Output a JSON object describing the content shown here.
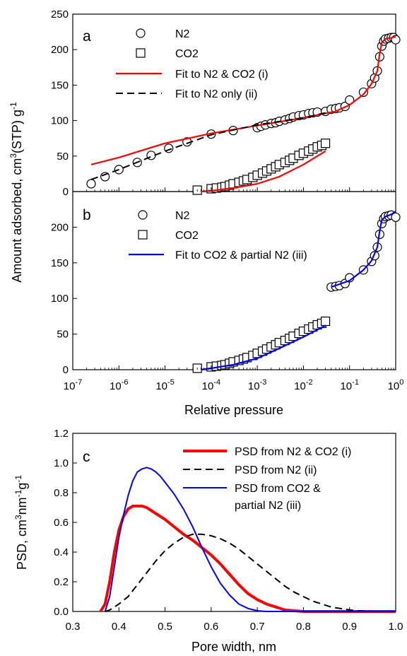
{
  "chart_data": [
    {
      "type": "scatter",
      "panel": "a",
      "xscale": "log",
      "xlim": [
        1e-07,
        1
      ],
      "ylim": [
        0,
        250
      ],
      "yticks": [
        0,
        50,
        100,
        150,
        200,
        250
      ],
      "legend": [
        "N2",
        "CO2",
        "Fit to N2 & CO2 (i)",
        "Fit to N2 only (ii)"
      ],
      "legend_position": "top-left",
      "series": [
        {
          "name": "N2",
          "marker": "circle",
          "color": "#000000",
          "x": [
            2.5e-07,
            5e-07,
            1e-06,
            2.5e-06,
            5e-06,
            1.2e-05,
            3e-05,
            0.0001,
            0.0003,
            0.001,
            0.0012,
            0.0015,
            0.002,
            0.0025,
            0.003,
            0.004,
            0.005,
            0.006,
            0.008,
            0.01,
            0.013,
            0.016,
            0.02,
            0.03,
            0.04,
            0.05,
            0.06,
            0.08,
            0.1,
            0.2,
            0.3,
            0.35,
            0.4,
            0.45,
            0.5,
            0.55,
            0.6,
            0.7,
            0.8,
            0.9,
            1.0
          ],
          "y": [
            11,
            21,
            31,
            41,
            51,
            61,
            70,
            81,
            86,
            90,
            92,
            94,
            96,
            97,
            99,
            101,
            103,
            105,
            107,
            108,
            110,
            111,
            112,
            113,
            116,
            117,
            118,
            120,
            129,
            140,
            152,
            160,
            170,
            190,
            205,
            212,
            215,
            216,
            217,
            217,
            214
          ]
        },
        {
          "name": "CO2",
          "marker": "square",
          "color": "#000000",
          "x": [
            5e-05,
            0.0001,
            0.00013,
            0.00017,
            0.0002,
            0.00025,
            0.0003,
            0.0004,
            0.0005,
            0.0006,
            0.0008,
            0.001,
            0.0013,
            0.0016,
            0.002,
            0.0025,
            0.003,
            0.004,
            0.005,
            0.006,
            0.008,
            0.01,
            0.013,
            0.016,
            0.02,
            0.025,
            0.03
          ],
          "y": [
            2,
            4,
            5,
            6,
            7,
            9,
            11,
            13,
            15,
            17,
            20,
            23,
            26,
            29,
            32,
            35,
            38,
            41,
            44,
            47,
            51,
            54,
            57,
            60,
            63,
            65,
            68
          ]
        },
        {
          "name": "Fit to N2 & CO2 (i)",
          "line": "solid",
          "color": "#ff0000",
          "segments": [
            {
              "x": [
                2.5e-07,
                1e-06,
                1e-05,
                0.0001,
                0.001,
                0.01,
                0.05,
                0.1,
                0.2,
                0.3,
                0.4,
                0.45,
                0.5,
                0.6,
                1.0
              ],
              "y": [
                38,
                48,
                68,
                82,
                93,
                104,
                113,
                122,
                137,
                152,
                170,
                195,
                210,
                215,
                218
              ]
            },
            {
              "x": [
                6e-05,
                0.0001,
                0.0003,
                0.001,
                0.003,
                0.01,
                0.03
              ],
              "y": [
                0,
                1,
                5,
                11,
                21,
                38,
                57
              ]
            }
          ]
        },
        {
          "name": "Fit to N2 only (ii)",
          "line": "dashed",
          "color": "#000000",
          "x": [
            2.5e-07,
            1e-06,
            1e-05,
            0.0001,
            0.001,
            0.01,
            0.03
          ],
          "y": [
            17,
            31,
            57,
            80,
            94,
            104,
            111
          ]
        }
      ]
    },
    {
      "type": "scatter",
      "panel": "b",
      "xscale": "log",
      "xlim": [
        1e-07,
        1
      ],
      "ylim": [
        0,
        250
      ],
      "yticks": [
        0,
        50,
        100,
        150,
        200
      ],
      "xlabel": "Relative pressure",
      "ylabel": "Amount adsorbed, cm³(STP) g⁻¹",
      "legend": [
        "N2",
        "CO2",
        "Fit to CO2 & partial N2 (iii)"
      ],
      "legend_position": "top-left",
      "series": [
        {
          "name": "N2",
          "marker": "circle",
          "color": "#000000",
          "x": [
            0.04,
            0.05,
            0.06,
            0.08,
            0.1,
            0.2,
            0.3,
            0.35,
            0.4,
            0.45,
            0.5,
            0.55,
            0.6,
            0.7,
            0.8,
            1.0
          ],
          "y": [
            116,
            117,
            118,
            121,
            129,
            140,
            152,
            160,
            172,
            190,
            205,
            212,
            215,
            216,
            217,
            214
          ]
        },
        {
          "name": "CO2",
          "marker": "square",
          "color": "#000000",
          "x": [
            5e-05,
            0.0001,
            0.00013,
            0.00017,
            0.0002,
            0.00025,
            0.0003,
            0.0004,
            0.0005,
            0.0006,
            0.0008,
            0.001,
            0.0013,
            0.0016,
            0.002,
            0.0025,
            0.003,
            0.004,
            0.005,
            0.006,
            0.008,
            0.01,
            0.013,
            0.016,
            0.02,
            0.025,
            0.03
          ],
          "y": [
            2,
            4,
            5,
            6,
            7,
            9,
            11,
            13,
            15,
            17,
            20,
            23,
            26,
            29,
            32,
            35,
            38,
            41,
            44,
            47,
            51,
            54,
            57,
            60,
            63,
            65,
            68
          ]
        },
        {
          "name": "Fit to CO2 & partial N2 (iii)",
          "line": "solid",
          "color": "#0000ff",
          "segments": [
            {
              "x": [
                6e-05,
                0.0001,
                0.0003,
                0.001,
                0.003,
                0.01,
                0.03
              ],
              "y": [
                0,
                2,
                7,
                16,
                30,
                46,
                62
              ]
            },
            {
              "x": [
                0.04,
                0.1,
                0.2,
                0.3,
                0.4,
                0.45,
                0.5,
                0.6,
                0.8,
                1.0
              ],
              "y": [
                116,
                125,
                140,
                153,
                172,
                195,
                210,
                215,
                218,
                222
              ]
            }
          ]
        }
      ]
    },
    {
      "type": "line",
      "panel": "c",
      "xlim": [
        0.3,
        1.0
      ],
      "ylim": [
        0,
        1.2
      ],
      "xticks": [
        0.3,
        0.4,
        0.5,
        0.6,
        0.7,
        0.8,
        0.9,
        1.0
      ],
      "yticks": [
        0.0,
        0.2,
        0.4,
        0.6,
        0.8,
        1.0,
        1.2
      ],
      "xlabel": "Pore width, nm",
      "ylabel": "PSD, cm³nm⁻¹g⁻¹",
      "legend_position": "top-right",
      "series": [
        {
          "name": "PSD from N2 & CO2 (i)",
          "color": "#ff0000",
          "line": "solid-thick",
          "x": [
            0.36,
            0.37,
            0.38,
            0.39,
            0.4,
            0.41,
            0.42,
            0.43,
            0.44,
            0.45,
            0.46,
            0.47,
            0.48,
            0.5,
            0.52,
            0.54,
            0.56,
            0.58,
            0.6,
            0.62,
            0.64,
            0.66,
            0.68,
            0.7,
            0.72,
            0.74,
            0.76,
            0.78,
            0.8,
            0.85,
            0.9,
            1.0
          ],
          "y": [
            0.0,
            0.05,
            0.2,
            0.4,
            0.55,
            0.64,
            0.69,
            0.71,
            0.71,
            0.71,
            0.7,
            0.68,
            0.66,
            0.62,
            0.57,
            0.52,
            0.48,
            0.43,
            0.38,
            0.32,
            0.25,
            0.18,
            0.12,
            0.08,
            0.05,
            0.03,
            0.01,
            0.005,
            0.0,
            0.0,
            0.0,
            0.0
          ]
        },
        {
          "name": "PSD from N2 (ii)",
          "color": "#000000",
          "line": "dashed",
          "x": [
            0.37,
            0.38,
            0.4,
            0.42,
            0.44,
            0.46,
            0.48,
            0.5,
            0.52,
            0.54,
            0.56,
            0.58,
            0.6,
            0.62,
            0.64,
            0.66,
            0.68,
            0.7,
            0.72,
            0.74,
            0.76,
            0.78,
            0.8,
            0.82,
            0.84,
            0.86,
            0.88,
            0.9,
            0.92,
            0.95,
            1.0
          ],
          "y": [
            0.0,
            0.01,
            0.05,
            0.1,
            0.18,
            0.26,
            0.34,
            0.41,
            0.46,
            0.5,
            0.52,
            0.52,
            0.51,
            0.49,
            0.46,
            0.42,
            0.37,
            0.32,
            0.27,
            0.22,
            0.17,
            0.13,
            0.1,
            0.07,
            0.05,
            0.03,
            0.02,
            0.01,
            0.005,
            0.0,
            0.0
          ]
        },
        {
          "name": "PSD from CO2 & partial N2 (iii)",
          "color": "#0000ff",
          "line": "solid",
          "x": [
            0.37,
            0.38,
            0.39,
            0.4,
            0.41,
            0.42,
            0.43,
            0.44,
            0.45,
            0.46,
            0.47,
            0.48,
            0.49,
            0.5,
            0.52,
            0.54,
            0.56,
            0.58,
            0.6,
            0.62,
            0.64,
            0.66,
            0.68,
            0.7,
            0.72,
            0.75,
            0.8,
            1.0
          ],
          "y": [
            0.0,
            0.1,
            0.3,
            0.5,
            0.65,
            0.78,
            0.88,
            0.94,
            0.96,
            0.97,
            0.96,
            0.94,
            0.91,
            0.87,
            0.79,
            0.69,
            0.57,
            0.43,
            0.3,
            0.19,
            0.11,
            0.05,
            0.02,
            0.005,
            0.0,
            0.0,
            0.0,
            0.0
          ]
        }
      ]
    }
  ],
  "panel_labels": {
    "a": "a",
    "b": "b",
    "c": "c"
  },
  "axis_titles": {
    "ab_ylabel_pre": "Amount adsorbed, cm",
    "ab_ylabel_sup1": "3",
    "ab_ylabel_mid": "(STP) g",
    "ab_ylabel_sup2": "-1",
    "ab_xlabel": "Relative pressure",
    "c_ylabel_pre": "PSD, cm",
    "c_ylabel_sup1": "3",
    "c_ylabel_mid": "nm",
    "c_ylabel_sup2": "-1",
    "c_ylabel_g": "g",
    "c_ylabel_sup3": "-1",
    "c_xlabel": "Pore width, nm"
  },
  "legend_a": {
    "n2": "N2",
    "co2": "CO2",
    "fit_i": "Fit to N2 & CO2 (i)",
    "fit_ii": "Fit to N2 only (ii)"
  },
  "legend_b": {
    "n2": "N2",
    "co2": "CO2",
    "fit_iii": "Fit to CO2 & partial N2 (iii)"
  },
  "legend_c": {
    "i": "PSD from N2 & CO2 (i)",
    "ii": "PSD from N2 (ii)",
    "iii_line1": "PSD from CO2 &",
    "iii_line2": "partial N2 (iii)"
  },
  "ticks_ab_y": [
    "0",
    "50",
    "100",
    "150",
    "200",
    "250"
  ],
  "ticks_ab_x_base": "10",
  "ticks_ab_x_exp": [
    "-7",
    "-6",
    "-5",
    "-4",
    "-3",
    "-2",
    "-1",
    "0"
  ],
  "ticks_c_y": [
    "0.0",
    "0.2",
    "0.4",
    "0.6",
    "0.8",
    "1.0",
    "1.2"
  ],
  "ticks_c_x": [
    "0.3",
    "0.4",
    "0.5",
    "0.6",
    "0.7",
    "0.8",
    "0.9",
    "1.0"
  ]
}
